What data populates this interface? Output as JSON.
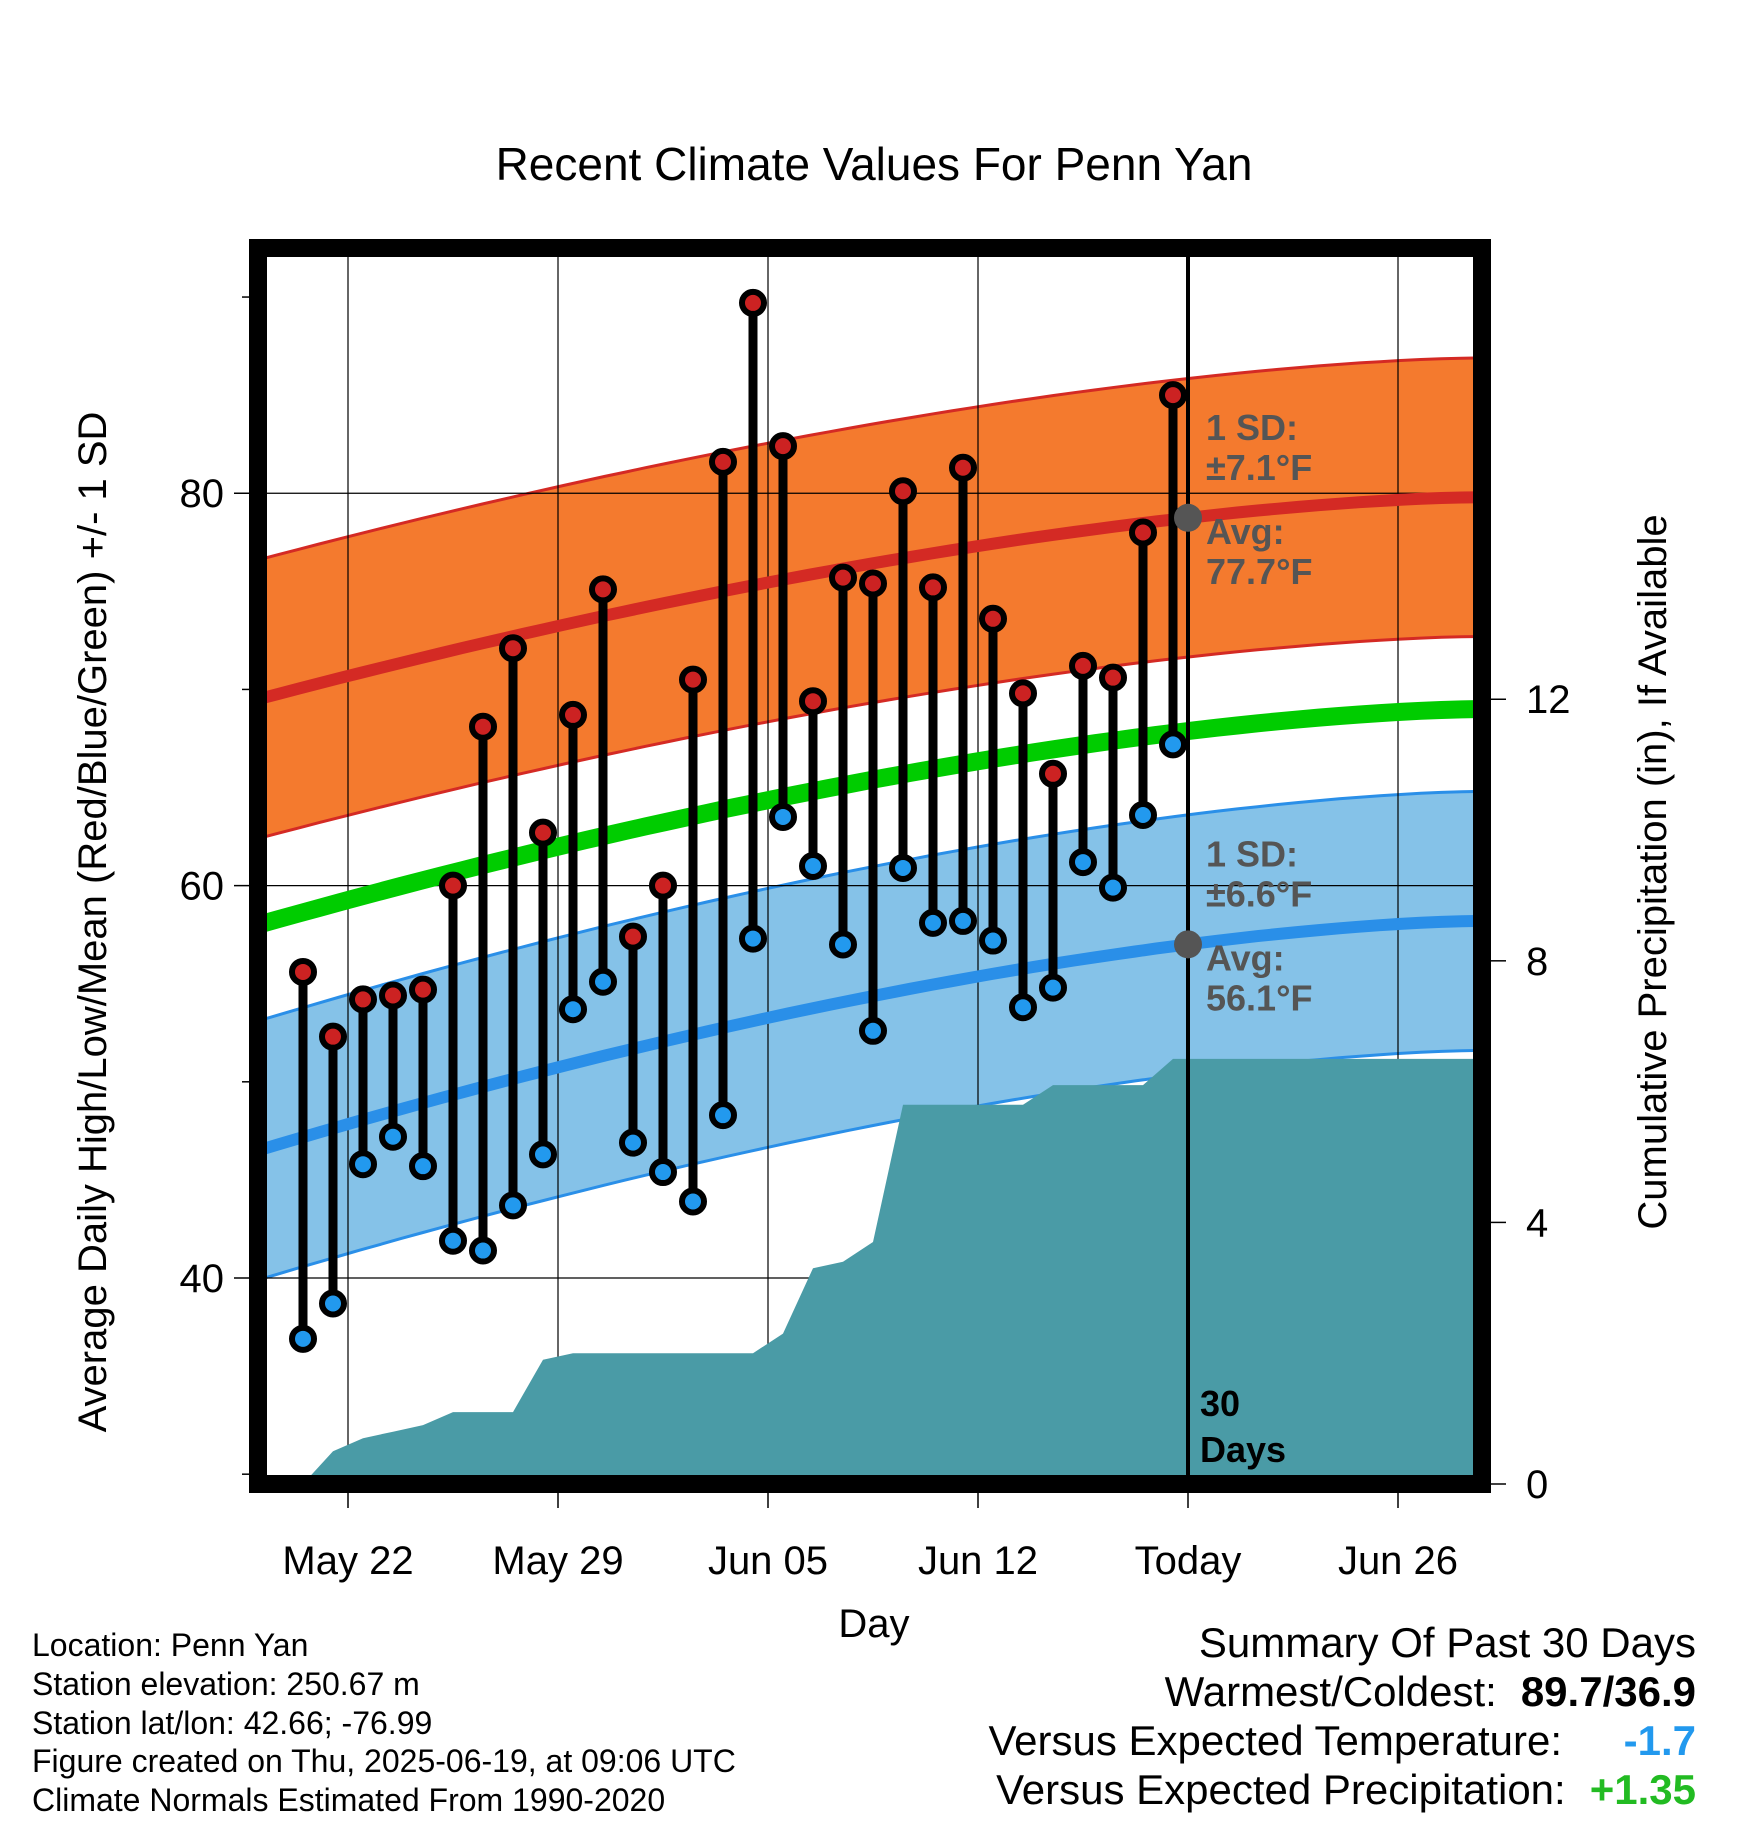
{
  "title": "Recent Climate Values For Penn Yan",
  "chart_data": {
    "type": "line",
    "title": "Recent Climate Values For Penn Yan",
    "xlabel": "Day",
    "ylabel_left": "Average Daily High/Low/Mean (Red/Blue/Green) +/- 1 SD",
    "ylabel_right": "Cumulative Precipitation (in), If Available",
    "x_tick_labels": [
      "May 22",
      "May 29",
      "Jun 05",
      "Jun 12",
      "Today",
      "Jun 26"
    ],
    "y_left_ticks": [
      "40",
      "60",
      "80"
    ],
    "y_right_ticks": [
      "0",
      "4",
      "8",
      "12"
    ],
    "ylim_left": [
      29.5,
      92.5
    ],
    "ylim_right": [
      0,
      18.9
    ],
    "days": [
      "May 20",
      "May 21",
      "May 22",
      "May 23",
      "May 24",
      "May 25",
      "May 26",
      "May 27",
      "May 28",
      "May 29",
      "May 30",
      "May 31",
      "Jun 01",
      "Jun 02",
      "Jun 03",
      "Jun 04",
      "Jun 05",
      "Jun 06",
      "Jun 07",
      "Jun 08",
      "Jun 09",
      "Jun 10",
      "Jun 11",
      "Jun 12",
      "Jun 13",
      "Jun 14",
      "Jun 15",
      "Jun 16",
      "Jun 17",
      "Jun 18"
    ],
    "series": [
      {
        "name": "High",
        "color": "#cc2222",
        "values": [
          55.6,
          52.3,
          54.2,
          54.4,
          54.7,
          60.0,
          68.1,
          72.1,
          62.7,
          68.7,
          75.1,
          57.4,
          60.0,
          70.5,
          81.6,
          89.7,
          82.4,
          69.4,
          75.7,
          75.4,
          80.1,
          75.2,
          81.3,
          73.6,
          69.8,
          65.7,
          71.2,
          70.6,
          78.0,
          85.0
        ]
      },
      {
        "name": "Low",
        "color": "#2299ee",
        "values": [
          36.9,
          38.7,
          45.8,
          47.2,
          45.7,
          41.9,
          41.4,
          43.7,
          46.3,
          53.7,
          55.1,
          46.9,
          45.4,
          43.9,
          48.3,
          57.3,
          63.5,
          61.0,
          57.0,
          52.6,
          60.9,
          58.1,
          58.2,
          57.2,
          53.8,
          54.8,
          61.2,
          59.9,
          63.6,
          67.2
        ]
      },
      {
        "name": "Precipitation",
        "color": "#4a9ba6",
        "values": [
          0.0,
          0.5,
          0.7,
          0.8,
          0.9,
          1.1,
          1.1,
          1.1,
          1.9,
          2.0,
          2.0,
          2.0,
          2.0,
          2.0,
          2.0,
          2.0,
          2.3,
          3.3,
          3.4,
          3.7,
          5.8,
          5.8,
          5.8,
          5.8,
          5.8,
          6.1,
          6.1,
          6.1,
          6.1,
          6.5
        ]
      }
    ],
    "normal_high": {
      "start": 69.5,
      "end": 79.8
    },
    "normal_low": {
      "start": 46.5,
      "end": 58.2
    },
    "normal_mean": {
      "start": 58.0,
      "end": 69.0
    },
    "normal_high_sd": 7.1,
    "normal_low_sd": 6.6,
    "annotations": {
      "high_sd_label": "1 SD:",
      "high_sd_value": "±7.1°F",
      "high_avg_label": "Avg:",
      "high_avg_value": "77.7°F",
      "low_sd_label": "1 SD:",
      "low_sd_value": "±6.6°F",
      "low_avg_label": "Avg:",
      "low_avg_value": "56.1°F",
      "days_label_line1": "30",
      "days_label_line2": "Days"
    },
    "colors": {
      "high_band": "#f47a2e",
      "high_line": "#d42a24",
      "low_band": "#85c2e8",
      "low_line": "#2a8fe8",
      "mean_line": "#00cc00",
      "precip": "#4a9ba6",
      "annotation_text": "#555555"
    }
  },
  "info": {
    "location": "Location: Penn Yan",
    "elevation": "Station elevation: 250.67 m",
    "latlon": "Station lat/lon: 42.66; -76.99",
    "created": "Figure created on Thu, 2025-06-19, at 09:06 UTC",
    "normals": "Climate Normals Estimated From 1990-2020"
  },
  "summary": {
    "heading": "Summary Of Past 30 Days",
    "warm_cold_label": "Warmest/Coldest:",
    "warm_cold_value": "89.7/36.9",
    "temp_label": "Versus Expected Temperature:",
    "temp_value": "-1.7",
    "temp_color": "#2299ee",
    "precip_label": "Versus Expected Precipitation:",
    "precip_value": "+1.35",
    "precip_color": "#22bb22"
  }
}
